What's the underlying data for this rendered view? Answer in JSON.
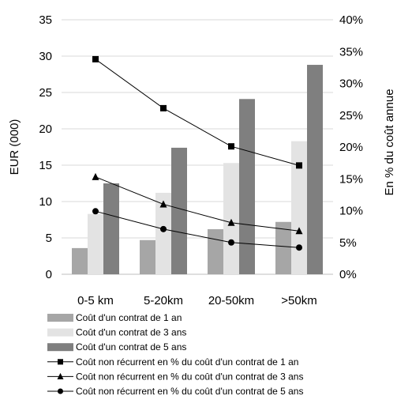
{
  "chart_data": {
    "type": "bar",
    "categories": [
      "0-5 km",
      "5-20km",
      "20-50km",
      ">50km"
    ],
    "ylabel": "EUR (000)",
    "ylim": [
      0,
      35
    ],
    "yticks": [
      "0",
      "5",
      "10",
      "15",
      "20",
      "25",
      "30",
      "35"
    ],
    "y2label": "En % du coût annue",
    "y2lim": [
      0,
      40
    ],
    "y2ticks": [
      "0%",
      "5%",
      "10%",
      "15%",
      "20%",
      "25%",
      "30%",
      "35%",
      "40%"
    ],
    "grid": true,
    "legend_position": "bottom",
    "series": [
      {
        "name": "Coût d'un contrat de 1 an",
        "kind": "bar",
        "axis": "left",
        "color": "#a6a6a6",
        "values": [
          3.6,
          4.7,
          6.2,
          7.2
        ]
      },
      {
        "name": "Coût d'un contrat de 3 ans",
        "kind": "bar",
        "axis": "left",
        "color": "#e3e3e3",
        "values": [
          8.3,
          11.2,
          15.3,
          18.3
        ]
      },
      {
        "name": "Coût d'un contrat de 5 ans",
        "kind": "bar",
        "axis": "left",
        "color": "#7f7f7f",
        "values": [
          12.5,
          17.4,
          24.1,
          28.8
        ]
      },
      {
        "name": "Coût non récurrent en % du coût d'un contrat de 1 an",
        "kind": "line",
        "marker": "square",
        "axis": "right",
        "color": "#000000",
        "values": [
          33.8,
          26.1,
          20.1,
          17.1
        ]
      },
      {
        "name": "Coût non récurrent en % du coût d'un contrat de 3 ans",
        "kind": "line",
        "marker": "triangle",
        "axis": "right",
        "color": "#000000",
        "values": [
          15.3,
          11.0,
          8.1,
          6.8
        ]
      },
      {
        "name": "Coût non récurrent en % du coût d'un contrat de 5 ans",
        "kind": "line",
        "marker": "circle",
        "axis": "right",
        "color": "#000000",
        "values": [
          9.9,
          7.1,
          5.0,
          4.2
        ]
      }
    ]
  }
}
